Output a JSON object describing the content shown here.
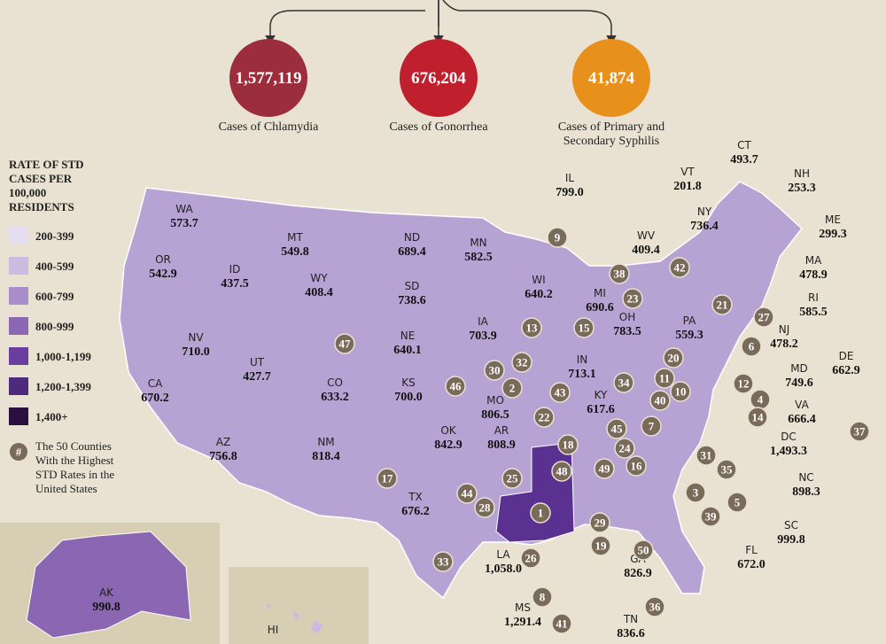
{
  "summary": [
    {
      "value": "1,577,119",
      "caption": "Cases of Chlamydia",
      "color": "#9b2d3c"
    },
    {
      "value": "676,204",
      "caption": "Cases of Gonorrhea",
      "color": "#c01f2e"
    },
    {
      "value": "41,874",
      "caption": "Cases of Primary and Secondary Syphilis",
      "color": "#e8901c"
    }
  ],
  "legend": {
    "title": "RATE OF STD CASES PER 100,000 RESIDENTS",
    "items": [
      {
        "label": "200-399",
        "color": "#e4dcef"
      },
      {
        "label": "400-599",
        "color": "#cbbbe0"
      },
      {
        "label": "600-799",
        "color": "#a98dca"
      },
      {
        "label": "800-999",
        "color": "#8a66b3"
      },
      {
        "label": "1,000-1,199",
        "color": "#6a3ea0"
      },
      {
        "label": "1,200-1,399",
        "color": "#4d2a7c"
      },
      {
        "label": "1,400+",
        "color": "#2a1040"
      }
    ],
    "note": "The 50 Counties With the Highest STD Rates in the United States"
  },
  "states": [
    {
      "name": "WA",
      "rate": "573.7"
    },
    {
      "name": "OR",
      "rate": "542.9"
    },
    {
      "name": "ID",
      "rate": "437.5"
    },
    {
      "name": "MT",
      "rate": "549.8"
    },
    {
      "name": "WY",
      "rate": "408.4"
    },
    {
      "name": "UT",
      "rate": "427.7"
    },
    {
      "name": "NV",
      "rate": "710.0"
    },
    {
      "name": "CA",
      "rate": "670.2"
    },
    {
      "name": "AZ",
      "rate": "756.8"
    },
    {
      "name": "NM",
      "rate": "818.4"
    },
    {
      "name": "CO",
      "rate": "633.2"
    },
    {
      "name": "ND",
      "rate": "689.4"
    },
    {
      "name": "SD",
      "rate": "738.6"
    },
    {
      "name": "NE",
      "rate": "640.1"
    },
    {
      "name": "KS",
      "rate": "700.0"
    },
    {
      "name": "OK",
      "rate": "842.9"
    },
    {
      "name": "TX",
      "rate": "676.2"
    },
    {
      "name": "MN",
      "rate": "582.5"
    },
    {
      "name": "IA",
      "rate": "703.9"
    },
    {
      "name": "MO",
      "rate": "806.5"
    },
    {
      "name": "AR",
      "rate": "808.9"
    },
    {
      "name": "LA",
      "rate": "1,058.0"
    },
    {
      "name": "MS",
      "rate": "1,291.4"
    },
    {
      "name": "WI",
      "rate": "640.2"
    },
    {
      "name": "IL",
      "rate": "799.0"
    },
    {
      "name": "MI",
      "rate": "690.6"
    },
    {
      "name": "IN",
      "rate": "713.1"
    },
    {
      "name": "OH",
      "rate": "783.5"
    },
    {
      "name": "KY",
      "rate": "617.6"
    },
    {
      "name": "TN",
      "rate": "836.6"
    },
    {
      "name": "GA",
      "rate": "826.9"
    },
    {
      "name": "FL",
      "rate": "672.0"
    },
    {
      "name": "SC",
      "rate": "999.8"
    },
    {
      "name": "NC",
      "rate": "898.3"
    },
    {
      "name": "VA",
      "rate": "666.4"
    },
    {
      "name": "WV",
      "rate": "409.4"
    },
    {
      "name": "PA",
      "rate": "559.3"
    },
    {
      "name": "NY",
      "rate": "736.4"
    },
    {
      "name": "VT",
      "rate": "201.8"
    },
    {
      "name": "CT",
      "rate": "493.7"
    },
    {
      "name": "NH",
      "rate": "253.3"
    },
    {
      "name": "ME",
      "rate": "299.3"
    },
    {
      "name": "MA",
      "rate": "478.9"
    },
    {
      "name": "RI",
      "rate": "585.5"
    },
    {
      "name": "NJ",
      "rate": "478.2"
    },
    {
      "name": "DE",
      "rate": "662.9"
    },
    {
      "name": "MD",
      "rate": "749.6"
    },
    {
      "name": "DC",
      "rate": "1,493.3"
    },
    {
      "name": "AK",
      "rate": "990.8"
    },
    {
      "name": "HI"
    }
  ],
  "counties": [
    "9",
    "38",
    "42",
    "21",
    "27",
    "23",
    "13",
    "15",
    "32",
    "30",
    "46",
    "2",
    "43",
    "34",
    "20",
    "6",
    "11",
    "12",
    "10",
    "40",
    "4",
    "14",
    "22",
    "45",
    "7",
    "37",
    "18",
    "24",
    "31",
    "35",
    "16",
    "49",
    "48",
    "25",
    "44",
    "28",
    "17",
    "47",
    "1",
    "29",
    "19",
    "26",
    "50",
    "8",
    "41",
    "36",
    "33",
    "3",
    "5",
    "39"
  ]
}
